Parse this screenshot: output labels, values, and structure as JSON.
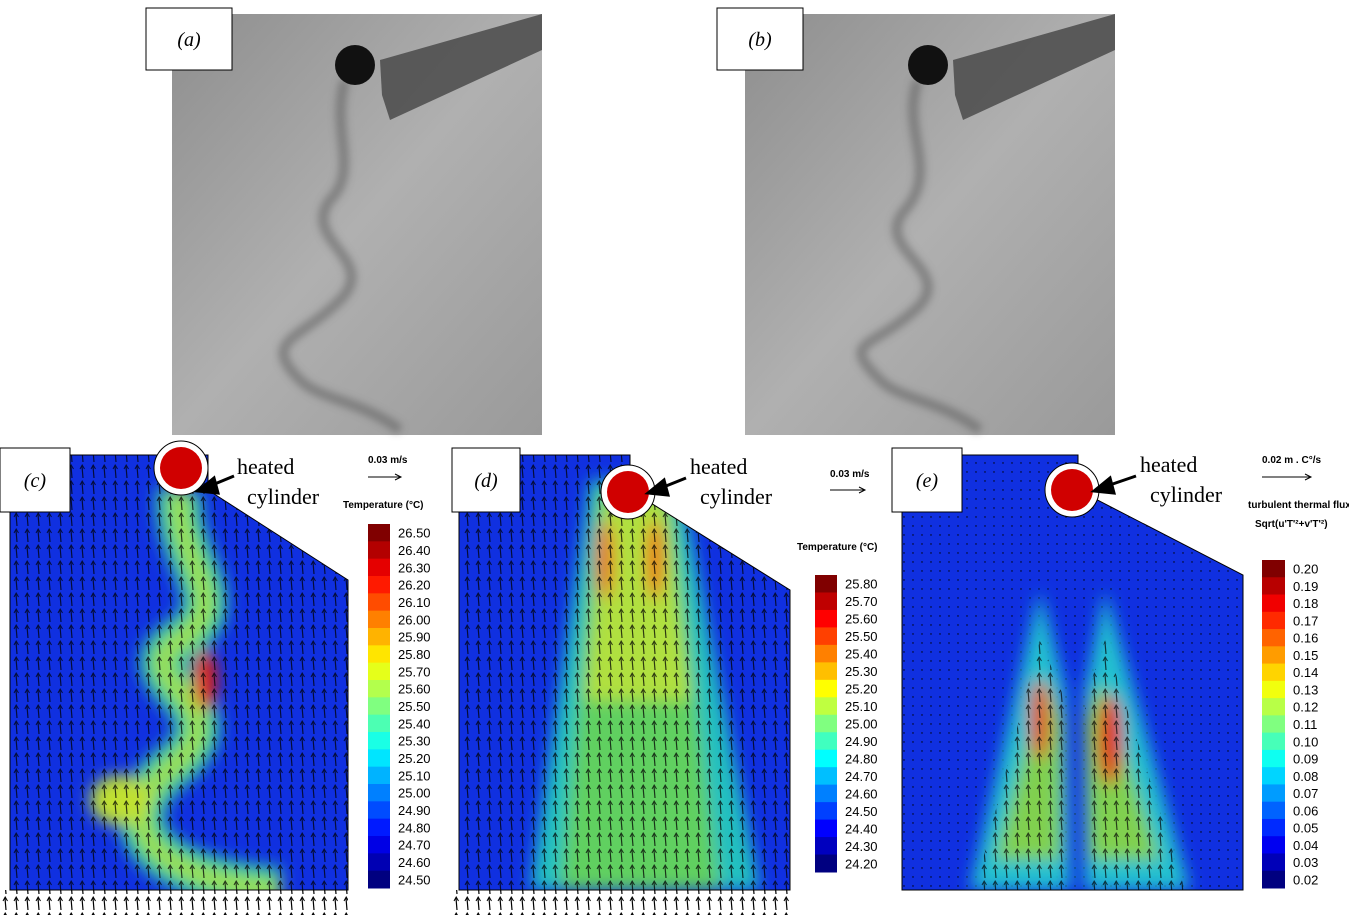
{
  "panels": [
    {
      "label": "(a)"
    },
    {
      "label": "(b)"
    },
    {
      "label": "(c)",
      "annotation_lines": [
        "heated",
        "cylinder"
      ],
      "scale": "0.03 m/s",
      "legend_title": [
        "Temperature (°C)"
      ],
      "colorbar": [
        "26.50",
        "26.40",
        "26.30",
        "26.20",
        "26.10",
        "26.00",
        "25.90",
        "25.80",
        "25.70",
        "25.60",
        "25.50",
        "25.40",
        "25.30",
        "25.20",
        "25.10",
        "25.00",
        "24.90",
        "24.80",
        "24.70",
        "24.60",
        "24.50"
      ]
    },
    {
      "label": "(d)",
      "annotation_lines": [
        "heated",
        "cylinder"
      ],
      "scale": "0.03 m/s",
      "legend_title": [
        "Temperature (°C)"
      ],
      "colorbar": [
        "25.80",
        "25.70",
        "25.60",
        "25.50",
        "25.40",
        "25.30",
        "25.20",
        "25.10",
        "25.00",
        "24.90",
        "24.80",
        "24.70",
        "24.60",
        "24.50",
        "24.40",
        "24.30",
        "24.20"
      ]
    },
    {
      "label": "(e)",
      "annotation_lines": [
        "heated",
        "cylinder"
      ],
      "scale": "0.02 m . C°/s",
      "legend_title": [
        "turbulent thermal flux",
        "Sqrt(u'T'²+v'T'²)"
      ],
      "colorbar": [
        "0.20",
        "0.19",
        "0.18",
        "0.17",
        "0.16",
        "0.15",
        "0.14",
        "0.13",
        "0.12",
        "0.11",
        "0.10",
        "0.09",
        "0.08",
        "0.07",
        "0.06",
        "0.05",
        "0.04",
        "0.03",
        "0.02"
      ]
    }
  ]
}
